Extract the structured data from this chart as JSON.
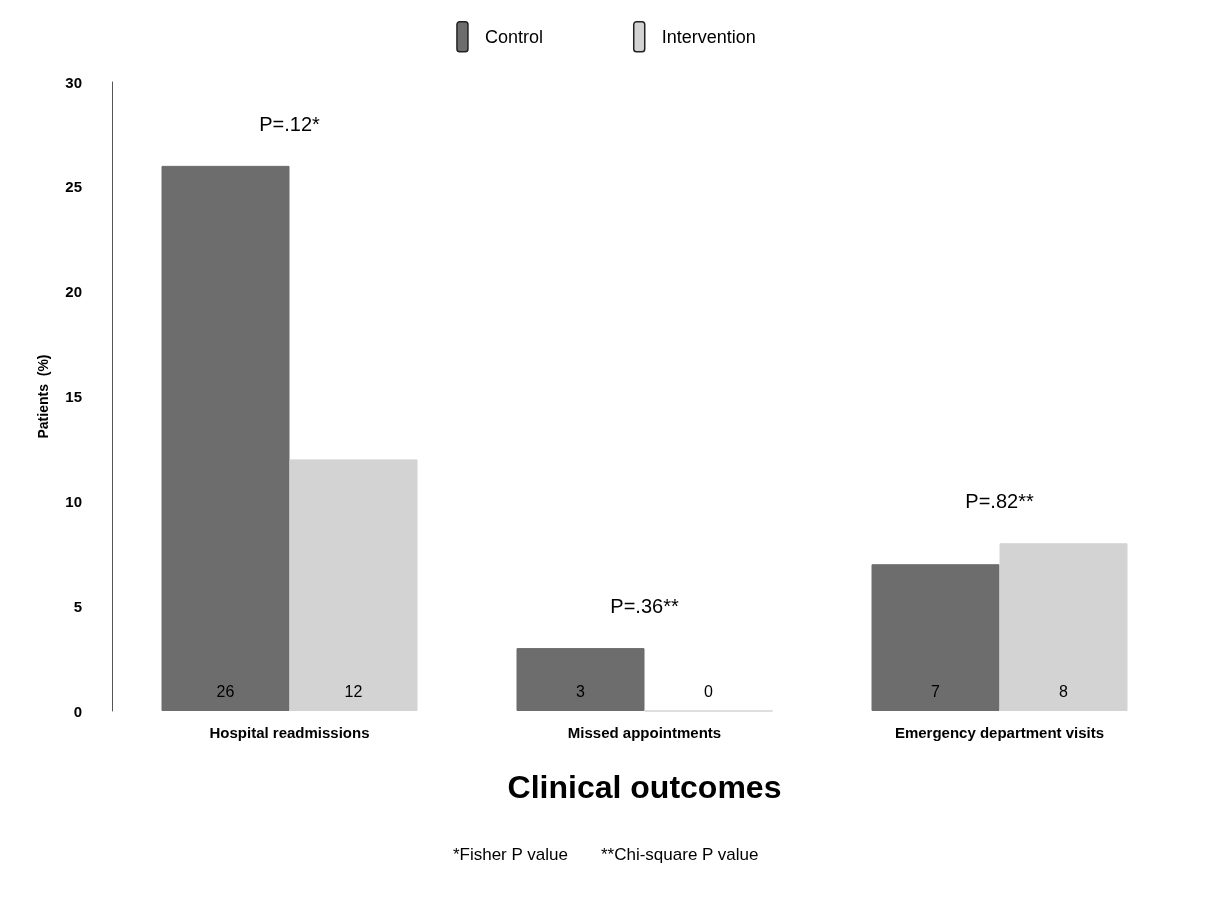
{
  "chart_data": {
    "type": "bar",
    "xlabel": "Clinical outcomes",
    "ylabel": "Patients  (%)",
    "categories": [
      "Hospital readmissions",
      "Missed appointments",
      "Emergency department visits"
    ],
    "series": [
      {
        "name": "Control",
        "color": "#6d6d6d",
        "values": [
          26,
          3,
          7
        ]
      },
      {
        "name": "Intervention",
        "color": "#d3d3d3",
        "values": [
          12,
          0,
          8
        ]
      }
    ],
    "ylim": [
      0,
      30
    ],
    "yticks": [
      0,
      5,
      10,
      15,
      20,
      25,
      30
    ],
    "grid": false,
    "legend": "top",
    "data_labels": true,
    "annotations": [
      "P=.12*",
      "P=.36**",
      "P=.82**",
      "*Fisher P value       **Chi-square P value"
    ]
  }
}
